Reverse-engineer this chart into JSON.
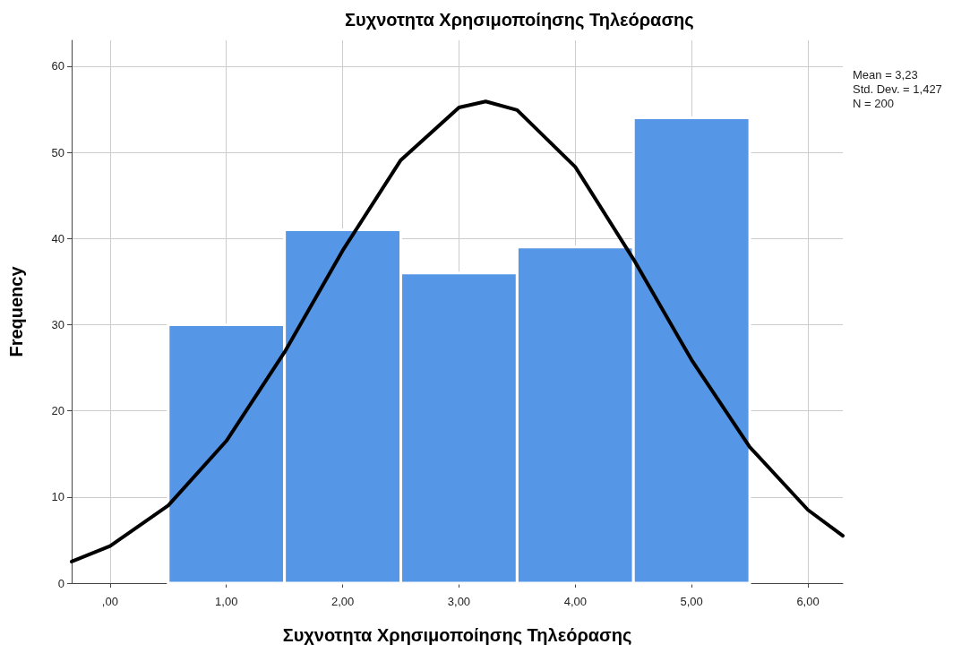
{
  "chart_data": {
    "type": "histogram",
    "title": "Συχνοτητα Χρησιμοποίησης Τηλεόρασης",
    "xlabel": "Συχνοτητα Χρησιμοποίησης Τηλεόρασης",
    "ylabel": "Frequency",
    "bins": [
      0.5,
      1.5,
      2.5,
      3.5,
      4.5,
      5.5
    ],
    "values": [
      30,
      41,
      36,
      39,
      54
    ],
    "color": "#5596e6",
    "series": [
      {
        "type": "line",
        "color": "#000000",
        "x": [
          -0.33,
          0,
          0.5,
          1,
          1.5,
          2,
          2.5,
          3,
          3.23,
          3.5,
          4,
          4.5,
          5,
          5.5,
          6,
          6.3
        ],
        "values": [
          2.5,
          4.3,
          9.0,
          16.5,
          26.8,
          38.6,
          49.1,
          55.2,
          55.9,
          54.9,
          48.3,
          37.6,
          25.9,
          15.8,
          8.5,
          5.5
        ]
      }
    ],
    "marker": "none",
    "line_style": "solid",
    "xlim": [
      -0.33,
      6.3
    ],
    "xticks": [
      {
        "value": 0,
        "label": ",00"
      },
      {
        "value": 1,
        "label": "1,00"
      },
      {
        "value": 2,
        "label": "2,00"
      },
      {
        "value": 3,
        "label": "3,00"
      },
      {
        "value": 4,
        "label": "4,00"
      },
      {
        "value": 5,
        "label": "5,00"
      },
      {
        "value": 6,
        "label": "6,00"
      }
    ],
    "ylim": [
      0,
      63
    ],
    "yticks": [
      0,
      10,
      20,
      30,
      40,
      50,
      60
    ],
    "grid": true,
    "annotations": [
      "Mean = 3,23",
      "Std. Dev. = 1,427",
      "N = 200"
    ]
  }
}
